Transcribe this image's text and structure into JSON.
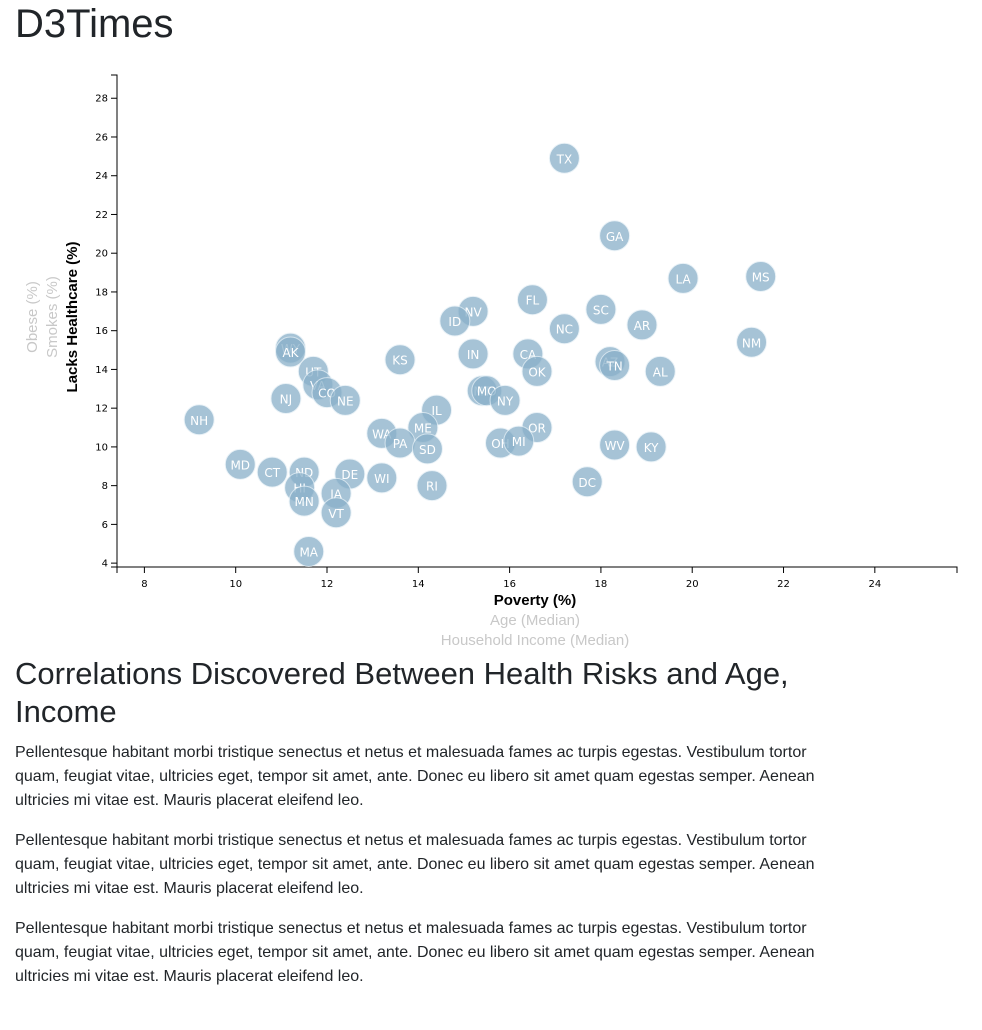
{
  "site": {
    "title": "D3Times"
  },
  "article": {
    "heading": "Correlations Discovered Between Health Risks and Age, Income",
    "paragraphs": [
      "Pellentesque habitant morbi tristique senectus et netus et malesuada fames ac turpis egestas. Vestibulum tortor quam, feugiat vitae, ultricies eget, tempor sit amet, ante. Donec eu libero sit amet quam egestas semper. Aenean ultricies mi vitae est. Mauris placerat eleifend leo.",
      "Pellentesque habitant morbi tristique senectus et netus et malesuada fames ac turpis egestas. Vestibulum tortor quam, feugiat vitae, ultricies eget, tempor sit amet, ante. Donec eu libero sit amet quam egestas semper. Aenean ultricies mi vitae est. Mauris placerat eleifend leo.",
      "Pellentesque habitant morbi tristique senectus et netus et malesuada fames ac turpis egestas. Vestibulum tortor quam, feugiat vitae, ultricies eget, tempor sit amet, ante. Donec eu libero sit amet quam egestas semper. Aenean ultricies mi vitae est. Mauris placerat eleifend leo."
    ]
  },
  "colors": {
    "marker": "#89b0c9",
    "active_label": "#000000",
    "inactive_label": "#c8c8c8"
  },
  "chart_data": {
    "type": "scatter",
    "title": "",
    "x_labels": [
      {
        "text": "Poverty (%)",
        "active": true
      },
      {
        "text": "Age (Median)",
        "active": false
      },
      {
        "text": "Household Income (Median)",
        "active": false
      }
    ],
    "y_labels": [
      {
        "text": "Lacks Healthcare (%)",
        "active": true
      },
      {
        "text": "Smokes (%)",
        "active": false
      },
      {
        "text": "Obese (%)",
        "active": false
      }
    ],
    "xlim": [
      7.4,
      25.8
    ],
    "ylim": [
      3.8,
      29.2
    ],
    "x_ticks": [
      8,
      10,
      12,
      14,
      16,
      18,
      20,
      22,
      24
    ],
    "y_ticks": [
      4,
      6,
      8,
      10,
      12,
      14,
      16,
      18,
      20,
      22,
      24,
      26,
      28
    ],
    "grid": false,
    "points": [
      {
        "label": "TX",
        "x": 17.2,
        "y": 24.9
      },
      {
        "label": "GA",
        "x": 18.3,
        "y": 20.9
      },
      {
        "label": "LA",
        "x": 19.8,
        "y": 18.7
      },
      {
        "label": "MS",
        "x": 21.5,
        "y": 18.8
      },
      {
        "label": "FL",
        "x": 16.5,
        "y": 17.6
      },
      {
        "label": "SC",
        "x": 18.0,
        "y": 17.1
      },
      {
        "label": "NV",
        "x": 15.2,
        "y": 17.0
      },
      {
        "label": "ID",
        "x": 14.8,
        "y": 16.5
      },
      {
        "label": "AR",
        "x": 18.9,
        "y": 16.3
      },
      {
        "label": "NC",
        "x": 17.2,
        "y": 16.1
      },
      {
        "label": "NM",
        "x": 21.3,
        "y": 15.4
      },
      {
        "label": "WY",
        "x": 11.2,
        "y": 15.1
      },
      {
        "label": "AK",
        "x": 11.2,
        "y": 14.9
      },
      {
        "label": "IN",
        "x": 15.2,
        "y": 14.8
      },
      {
        "label": "CA",
        "x": 16.4,
        "y": 14.8
      },
      {
        "label": "KS",
        "x": 13.6,
        "y": 14.5
      },
      {
        "label": "AZ",
        "x": 18.2,
        "y": 14.4
      },
      {
        "label": "TN",
        "x": 18.3,
        "y": 14.2
      },
      {
        "label": "UT",
        "x": 11.7,
        "y": 13.9
      },
      {
        "label": "OK",
        "x": 16.6,
        "y": 13.9
      },
      {
        "label": "AL",
        "x": 19.3,
        "y": 13.9
      },
      {
        "label": "VA",
        "x": 11.8,
        "y": 13.2
      },
      {
        "label": "MT",
        "x": 15.4,
        "y": 12.9
      },
      {
        "label": "MO",
        "x": 15.5,
        "y": 12.9
      },
      {
        "label": "CO",
        "x": 12.0,
        "y": 12.8
      },
      {
        "label": "NJ",
        "x": 11.1,
        "y": 12.5
      },
      {
        "label": "NE",
        "x": 12.4,
        "y": 12.4
      },
      {
        "label": "NY",
        "x": 15.9,
        "y": 12.4
      },
      {
        "label": "IL",
        "x": 14.4,
        "y": 11.9
      },
      {
        "label": "NH",
        "x": 9.2,
        "y": 11.4
      },
      {
        "label": "ME",
        "x": 14.1,
        "y": 11.0
      },
      {
        "label": "OR",
        "x": 16.6,
        "y": 11.0
      },
      {
        "label": "WA",
        "x": 13.2,
        "y": 10.7
      },
      {
        "label": "PA",
        "x": 13.6,
        "y": 10.2
      },
      {
        "label": "OH",
        "x": 15.8,
        "y": 10.2
      },
      {
        "label": "MI",
        "x": 16.2,
        "y": 10.3
      },
      {
        "label": "WV",
        "x": 18.3,
        "y": 10.1
      },
      {
        "label": "KY",
        "x": 19.1,
        "y": 10.0
      },
      {
        "label": "SD",
        "x": 14.2,
        "y": 9.9
      },
      {
        "label": "MD",
        "x": 10.1,
        "y": 9.1
      },
      {
        "label": "CT",
        "x": 10.8,
        "y": 8.7
      },
      {
        "label": "ND",
        "x": 11.5,
        "y": 8.7
      },
      {
        "label": "DE",
        "x": 12.5,
        "y": 8.6
      },
      {
        "label": "WI",
        "x": 13.2,
        "y": 8.4
      },
      {
        "label": "DC",
        "x": 17.7,
        "y": 8.2
      },
      {
        "label": "HI",
        "x": 11.4,
        "y": 7.9
      },
      {
        "label": "RI",
        "x": 14.3,
        "y": 8.0
      },
      {
        "label": "IA",
        "x": 12.2,
        "y": 7.6
      },
      {
        "label": "MN",
        "x": 11.5,
        "y": 7.2
      },
      {
        "label": "VT",
        "x": 12.2,
        "y": 6.6
      },
      {
        "label": "MA",
        "x": 11.6,
        "y": 4.6
      }
    ]
  }
}
